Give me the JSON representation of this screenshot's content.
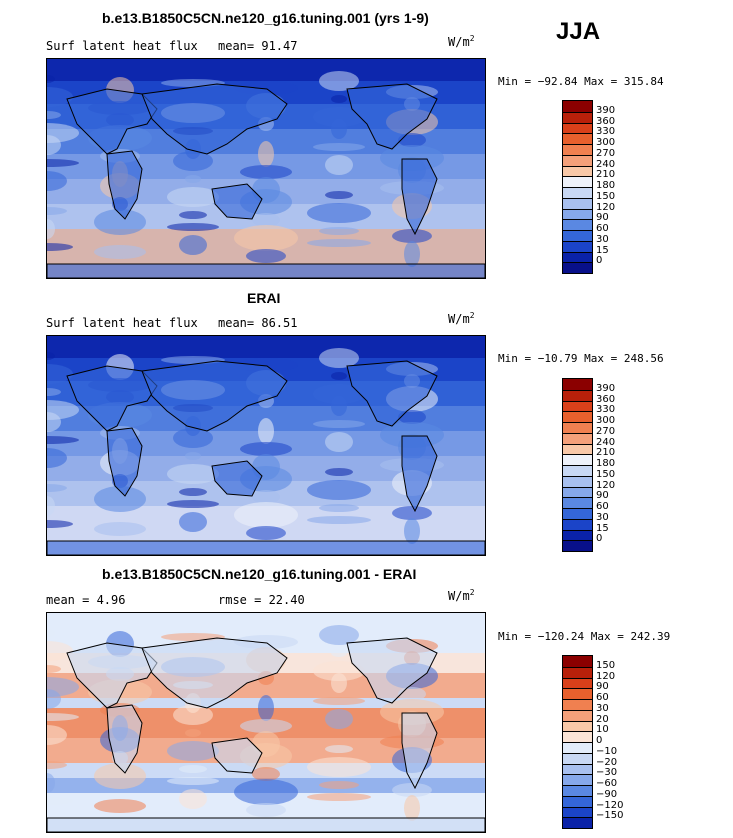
{
  "season": "JJA",
  "panels": [
    {
      "title": "b.e13.B1850C5CN.ne120_g16.tuning.001 (yrs 1-9)",
      "left_text": "Surf latent heat flux",
      "stat_text": "mean=  91.47",
      "units_base": "W/m",
      "units_exp": "2",
      "minmax": "Min = −92.84 Max = 315.84",
      "colorbar_labels": [
        "390",
        "360",
        "330",
        "300",
        "270",
        "240",
        "210",
        "180",
        "150",
        "120",
        "90",
        "60",
        "30",
        "15",
        "0"
      ],
      "colorbar_colors": [
        "#8b0000",
        "#b8200a",
        "#d9401a",
        "#e8602d",
        "#f08050",
        "#f4a07a",
        "#f8c8a8",
        "#eef2fa",
        "#c8d8f4",
        "#a8c0ef",
        "#86a8ea",
        "#5a88e2",
        "#3466d8",
        "#1b44c8",
        "#0a22a8",
        "#08108a"
      ],
      "map_palette": "positive"
    },
    {
      "title": "ERAI",
      "left_text": "Surf latent heat flux",
      "stat_text": "mean=  86.51",
      "units_base": "W/m",
      "units_exp": "2",
      "minmax": "Min = −10.79 Max = 248.56",
      "colorbar_labels": [
        "390",
        "360",
        "330",
        "300",
        "270",
        "240",
        "210",
        "180",
        "150",
        "120",
        "90",
        "60",
        "30",
        "15",
        "0"
      ],
      "colorbar_colors": [
        "#8b0000",
        "#b8200a",
        "#d9401a",
        "#e8602d",
        "#f08050",
        "#f4a07a",
        "#f8c8a8",
        "#eef2fa",
        "#c8d8f4",
        "#a8c0ef",
        "#86a8ea",
        "#5a88e2",
        "#3466d8",
        "#1b44c8",
        "#0a22a8",
        "#08108a"
      ],
      "map_palette": "positive"
    },
    {
      "title": "b.e13.B1850C5CN.ne120_g16.tuning.001 - ERAI",
      "left_text": "mean =   4.96",
      "stat_text": "rmse =  22.40",
      "units_base": "W/m",
      "units_exp": "2",
      "minmax": "Min = −120.24 Max = 242.39",
      "colorbar_labels": [
        "150",
        "120",
        "90",
        "60",
        "30",
        "20",
        "10",
        "0",
        "−10",
        "−20",
        "−30",
        "−60",
        "−90",
        "−120",
        "−150"
      ],
      "colorbar_colors": [
        "#8b0000",
        "#b8200a",
        "#d9401a",
        "#e8602d",
        "#f08050",
        "#f4a07a",
        "#f8c8a8",
        "#fbe4d6",
        "#e2ecfa",
        "#c8d8f4",
        "#a8c0ef",
        "#86a8ea",
        "#5a88e2",
        "#3466d8",
        "#1b44c8",
        "#0a22a8"
      ],
      "map_palette": "difference"
    }
  ]
}
